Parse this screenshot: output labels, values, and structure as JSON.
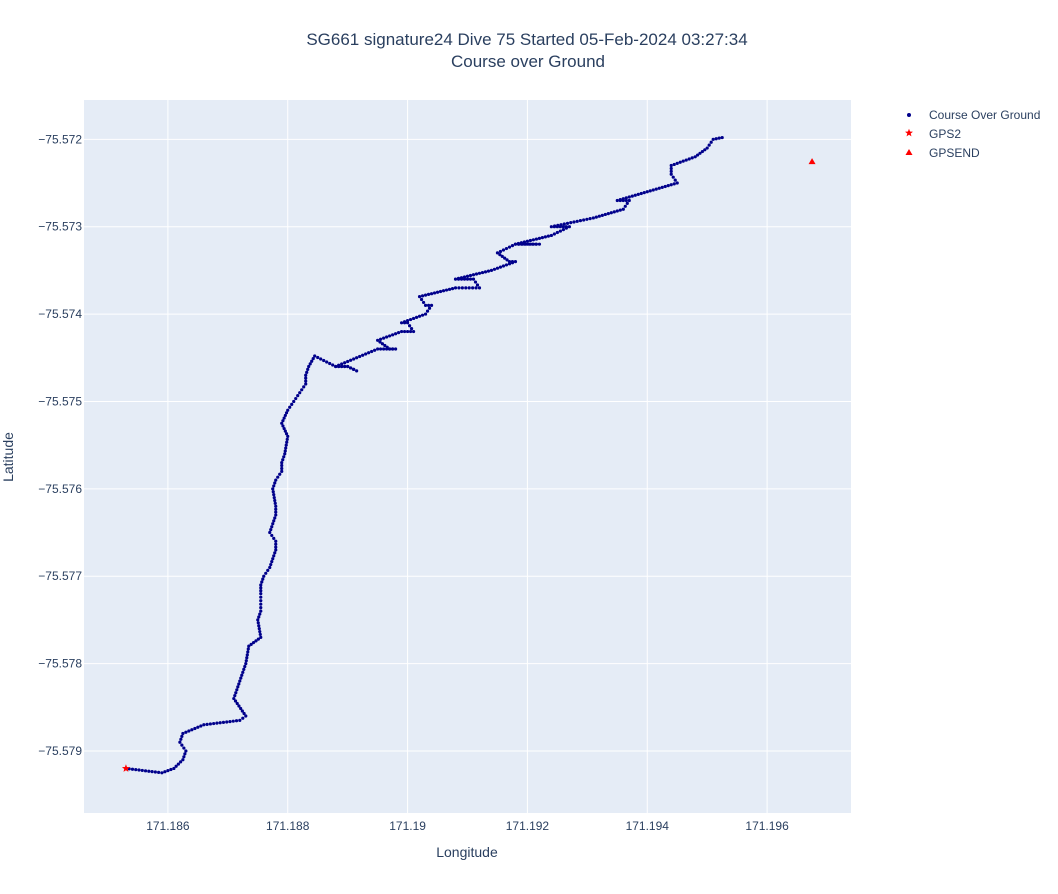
{
  "chart_data": {
    "type": "scatter",
    "title": "SG661 signature24 Dive 75 Started 05-Feb-2024 03:27:34",
    "subtitle": "Course over Ground",
    "xlabel": "Longitude",
    "ylabel": "Latitude",
    "xlim": [
      171.1846,
      171.1974
    ],
    "ylim": [
      -75.57971,
      -75.57155
    ],
    "x_ticks": [
      171.186,
      171.188,
      171.19,
      171.192,
      171.194,
      171.196
    ],
    "x_tick_labels": [
      "171.186",
      "171.188",
      "171.19",
      "171.192",
      "171.194",
      "171.196"
    ],
    "y_ticks": [
      -75.572,
      -75.573,
      -75.574,
      -75.575,
      -75.576,
      -75.577,
      -75.578,
      -75.579
    ],
    "y_tick_labels": [
      "−75.572",
      "−75.573",
      "−75.574",
      "−75.575",
      "−75.576",
      "−75.577",
      "−75.578",
      "−75.579"
    ],
    "grid": true,
    "legend_position": "top-right",
    "colors": {
      "plot_bg": "#e5ecf6",
      "grid": "#ffffff",
      "track": "#00008b",
      "gps": "#ff0000"
    },
    "series": [
      {
        "name": "Course Over Ground",
        "marker": "dot",
        "color": "#00008b",
        "points": [
          [
            171.1853,
            -75.5792
          ],
          [
            171.1859,
            -75.57925
          ],
          [
            171.1861,
            -75.5792
          ],
          [
            171.18625,
            -75.5791
          ],
          [
            171.1863,
            -75.579
          ],
          [
            171.1862,
            -75.5789
          ],
          [
            171.18625,
            -75.5788
          ],
          [
            171.1866,
            -75.5787
          ],
          [
            171.1872,
            -75.57865
          ],
          [
            171.1873,
            -75.5786
          ],
          [
            171.1871,
            -75.5784
          ],
          [
            171.1872,
            -75.5782
          ],
          [
            171.1873,
            -75.578
          ],
          [
            171.18735,
            -75.5778
          ],
          [
            171.18755,
            -75.5777
          ],
          [
            171.1875,
            -75.5775
          ],
          [
            171.18755,
            -75.5774
          ],
          [
            171.18755,
            -75.5772
          ],
          [
            171.18755,
            -75.5771
          ],
          [
            171.1876,
            -75.577
          ],
          [
            171.1877,
            -75.5769
          ],
          [
            171.1878,
            -75.5767
          ],
          [
            171.1878,
            -75.5766
          ],
          [
            171.1877,
            -75.5765
          ],
          [
            171.1878,
            -75.5763
          ],
          [
            171.1878,
            -75.5762
          ],
          [
            171.18775,
            -75.576
          ],
          [
            171.1878,
            -75.5759
          ],
          [
            171.1879,
            -75.5758
          ],
          [
            171.1879,
            -75.5757
          ],
          [
            171.18795,
            -75.5756
          ],
          [
            171.188,
            -75.5754
          ],
          [
            171.1879,
            -75.57525
          ],
          [
            171.188,
            -75.5751
          ],
          [
            171.1881,
            -75.575
          ],
          [
            171.1882,
            -75.5749
          ],
          [
            171.1883,
            -75.5748
          ],
          [
            171.1883,
            -75.5747
          ],
          [
            171.18835,
            -75.5746
          ],
          [
            171.18845,
            -75.57448
          ],
          [
            171.1888,
            -75.5746
          ],
          [
            171.189,
            -75.5746
          ],
          [
            171.18915,
            -75.57465
          ],
          [
            171.189,
            -75.5746
          ],
          [
            171.1888,
            -75.5746
          ],
          [
            171.1895,
            -75.5744
          ],
          [
            171.1898,
            -75.5744
          ],
          [
            171.1897,
            -75.5744
          ],
          [
            171.1895,
            -75.5743
          ],
          [
            171.1899,
            -75.5742
          ],
          [
            171.1901,
            -75.5742
          ],
          [
            171.19,
            -75.5741
          ],
          [
            171.1899,
            -75.5741
          ],
          [
            171.1903,
            -75.574
          ],
          [
            171.1904,
            -75.5739
          ],
          [
            171.1903,
            -75.5739
          ],
          [
            171.1902,
            -75.5738
          ],
          [
            171.1908,
            -75.5737
          ],
          [
            171.1912,
            -75.5737
          ],
          [
            171.1911,
            -75.5736
          ],
          [
            171.1908,
            -75.5736
          ],
          [
            171.1914,
            -75.5735
          ],
          [
            171.1918,
            -75.5734
          ],
          [
            171.1917,
            -75.5734
          ],
          [
            171.1915,
            -75.5733
          ],
          [
            171.1918,
            -75.5732
          ],
          [
            171.1922,
            -75.5732
          ],
          [
            171.192,
            -75.5732
          ],
          [
            171.1918,
            -75.5732
          ],
          [
            171.1924,
            -75.5731
          ],
          [
            171.1927,
            -75.573
          ],
          [
            171.1926,
            -75.573
          ],
          [
            171.1924,
            -75.573
          ],
          [
            171.1931,
            -75.5729
          ],
          [
            171.1936,
            -75.5728
          ],
          [
            171.1937,
            -75.5727
          ],
          [
            171.1935,
            -75.5727
          ],
          [
            171.194,
            -75.5726
          ],
          [
            171.1945,
            -75.5725
          ],
          [
            171.1944,
            -75.5724
          ],
          [
            171.1944,
            -75.5723
          ],
          [
            171.1948,
            -75.5722
          ],
          [
            171.195,
            -75.5721
          ],
          [
            171.1951,
            -75.572
          ],
          [
            171.19525,
            -75.57198
          ]
        ]
      },
      {
        "name": "GPS2",
        "marker": "star",
        "color": "#ff0000",
        "points": [
          [
            171.1853,
            -75.5792
          ]
        ]
      },
      {
        "name": "GPSEND",
        "marker": "triangle-up",
        "color": "#ff0000",
        "points": [
          [
            171.19675,
            -75.57225
          ]
        ]
      }
    ]
  }
}
